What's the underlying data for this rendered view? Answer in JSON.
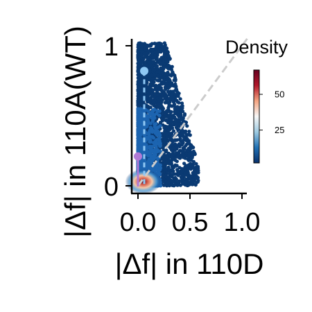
{
  "chart_data": {
    "type": "scatter",
    "title": "",
    "xlabel": "|Δf| in 110D",
    "ylabel": "|Δf| in 110A(WT)",
    "xlim": [
      -0.05,
      1.07
    ],
    "ylim": [
      -0.05,
      1.05
    ],
    "xticks": [
      {
        "value": 0.0,
        "label": "0.0"
      },
      {
        "value": 0.5,
        "label": "0.5"
      },
      {
        "value": 1.0,
        "label": "1.0"
      }
    ],
    "yticks": [
      {
        "value": 0,
        "label": "0"
      },
      {
        "value": 1,
        "label": "1"
      }
    ],
    "grid": false,
    "diagonal": {
      "from": [
        0,
        0
      ],
      "to": [
        1.05,
        1.05
      ],
      "style": "dashed",
      "color": "#cccccc"
    },
    "markers": [
      {
        "x": 0.06,
        "y": 0.82,
        "color": "#8fc8f4",
        "line": "vertical-dashed"
      },
      {
        "x": 0.0,
        "y": 0.21,
        "color": "#b07ad6",
        "line": "vertical-solid"
      }
    ],
    "colorbar": {
      "title": "Density",
      "ticks": [
        {
          "value": 25,
          "label": "25"
        },
        {
          "value": 50,
          "label": "50"
        }
      ],
      "range": [
        2,
        67
      ],
      "colormap": [
        "#08306b",
        "#2171b5",
        "#9ecae1",
        "#f7f7f7",
        "#f4a582",
        "#b2182b",
        "#67001f"
      ]
    }
  }
}
